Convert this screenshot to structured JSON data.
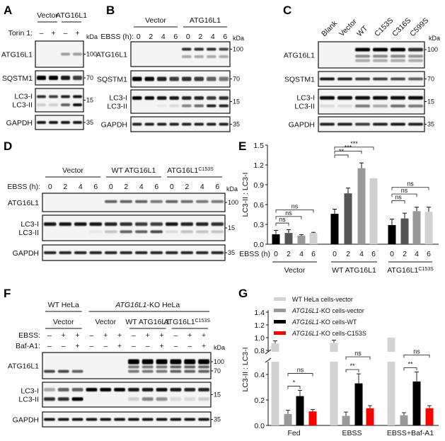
{
  "panels": {
    "A": {
      "label": "A",
      "groups": [
        "Vector",
        "ATG16L1"
      ],
      "cond_label": "Torin 1:",
      "lanes": [
        "–",
        "+",
        "–",
        "+"
      ],
      "kda": "kDa",
      "rows": [
        {
          "name": "ATG16L1",
          "markers": [
            "100"
          ]
        },
        {
          "name": "SQSTM1",
          "markers": [
            "70"
          ]
        },
        {
          "name": "LC3-I\nLC3-II",
          "markers": [
            "15"
          ]
        },
        {
          "name": "GAPDH",
          "markers": [
            "35"
          ]
        }
      ]
    },
    "B": {
      "label": "B",
      "groups": [
        "Vector",
        "ATG16L1"
      ],
      "cond_label": "EBSS (h):",
      "lanes": [
        "0",
        "2",
        "4",
        "6",
        "0",
        "2",
        "4",
        "6"
      ],
      "kda": "kDa",
      "rows": [
        {
          "name": "ATG16L1",
          "markers": [
            "100"
          ]
        },
        {
          "name": "SQSTM1",
          "markers": [
            "70"
          ]
        },
        {
          "name": "LC3-I\nLC3-II",
          "markers": [
            "15"
          ]
        },
        {
          "name": "GAPDH",
          "markers": [
            "35"
          ]
        }
      ]
    },
    "C": {
      "label": "C",
      "lanes": [
        "Blank",
        "Vector",
        "WT",
        "C153S",
        "C316S",
        "C599S"
      ],
      "kda": "kDa",
      "rows": [
        {
          "name": "ATG16L1",
          "markers": [
            "100"
          ]
        },
        {
          "name": "SQSTM1",
          "markers": [
            "70"
          ]
        },
        {
          "name": "LC3-I\nLC3-II",
          "markers": [
            "15"
          ]
        },
        {
          "name": "GAPDH",
          "markers": [
            "35"
          ]
        }
      ]
    },
    "D": {
      "label": "D",
      "groups": [
        "Vector",
        "WT ATG16L1",
        "ATG16L1",
        "C153S"
      ],
      "cond_label": "EBSS (h):",
      "lanes": [
        "0",
        "2",
        "4",
        "6",
        "0",
        "2",
        "4",
        "6",
        "0",
        "2",
        "4",
        "6"
      ],
      "kda": "kDa",
      "rows": [
        {
          "name": "ATG16L1",
          "markers": [
            "100"
          ]
        },
        {
          "name": "LC3-I\nLC3-II",
          "markers": [
            "15"
          ]
        },
        {
          "name": "GAPDH",
          "markers": [
            "35"
          ]
        }
      ]
    },
    "F": {
      "label": "F",
      "top_groups": [
        "WT HeLa",
        "ATG16L1-KO HeLa"
      ],
      "groups": [
        "Vector",
        "Vector",
        "WT ATG16L1",
        "ATG16L1",
        "C153S"
      ],
      "cond_labels": [
        "EBSS:",
        "Baf-A1:"
      ],
      "ebss": [
        "–",
        "+",
        "+",
        "–",
        "+",
        "+",
        "–",
        "+",
        "+",
        "–",
        "+",
        "+"
      ],
      "baf": [
        "–",
        "–",
        "+",
        "–",
        "–",
        "+",
        "–",
        "–",
        "+",
        "–",
        "–",
        "+"
      ],
      "kda": "kDa",
      "rows": [
        {
          "name": "ATG16L1",
          "markers": [
            "100",
            "70"
          ]
        },
        {
          "name": "LC3-I\nLC3-II",
          "markers": [
            "15"
          ]
        },
        {
          "name": "GAPDH",
          "markers": [
            "35"
          ]
        }
      ]
    },
    "E": {
      "label": "E"
    },
    "G": {
      "label": "G"
    }
  },
  "chart_data": [
    {
      "type": "bar",
      "panel": "E",
      "ylabel": "LC3-II : LC3-I",
      "ylim": [
        0,
        1.5
      ],
      "yticks": [
        "0.0",
        "0.3",
        "0.6",
        "0.9",
        "1.2",
        "1.5"
      ],
      "x_cond_label": "EBSS (h)",
      "categories": [
        "0",
        "2",
        "4",
        "6"
      ],
      "groups": [
        "Vector",
        "WT ATG16L1",
        "ATG16L1C153S"
      ],
      "colors": [
        "#000000",
        "#555555",
        "#999999",
        "#d0d0d0"
      ],
      "values": [
        [
          0.15,
          0.17,
          0.13,
          0.17
        ],
        [
          0.46,
          0.77,
          1.15,
          1.0
        ],
        [
          0.29,
          0.39,
          0.5,
          0.49
        ]
      ],
      "errors": [
        [
          0.06,
          0.05,
          0.015,
          0.01
        ],
        [
          0.07,
          0.08,
          0.08,
          0
        ],
        [
          0.09,
          0.08,
          0.06,
          0.07
        ]
      ],
      "significance": [
        [
          "ns",
          "ns",
          "ns"
        ],
        [
          "**",
          "***",
          "***"
        ],
        [
          "ns",
          "ns",
          "ns"
        ]
      ]
    },
    {
      "type": "bar",
      "panel": "G",
      "ylabel": "LC3-II : LC3-I",
      "yticks_low": [
        "0.0",
        "0.2",
        "0.4"
      ],
      "yticks_high": [
        "0.8",
        "1.0",
        "1.2",
        "1.4"
      ],
      "axis_break": [
        0.5,
        0.8
      ],
      "categories": [
        "Fed",
        "EBSS",
        "EBSS+Baf-A1"
      ],
      "series": [
        {
          "name": "WT HeLa cells-vector",
          "color": "#d3d3d3",
          "values": [
            0.91,
            0.92,
            1.0
          ],
          "errors": [
            0.04,
            0.04,
            0
          ]
        },
        {
          "name": "ATG16L1-KO cells-vector",
          "color": "#999999",
          "values": [
            0.09,
            0.075,
            0.08
          ],
          "errors": [
            0.03,
            0.03,
            0.02
          ]
        },
        {
          "name": "ATG16L1-KO cells-WT",
          "color": "#000000",
          "values": [
            0.23,
            0.33,
            0.345
          ],
          "errors": [
            0.045,
            0.075,
            0.075
          ]
        },
        {
          "name": "ATG16L1-KO cells-C153S",
          "color": "#ff0000",
          "values": [
            0.11,
            0.135,
            0.135
          ],
          "errors": [
            0.015,
            0.02,
            0.02
          ]
        }
      ],
      "significance": [
        [
          "*",
          "ns"
        ],
        [
          "**",
          "ns"
        ],
        [
          "**",
          "ns"
        ]
      ]
    }
  ]
}
